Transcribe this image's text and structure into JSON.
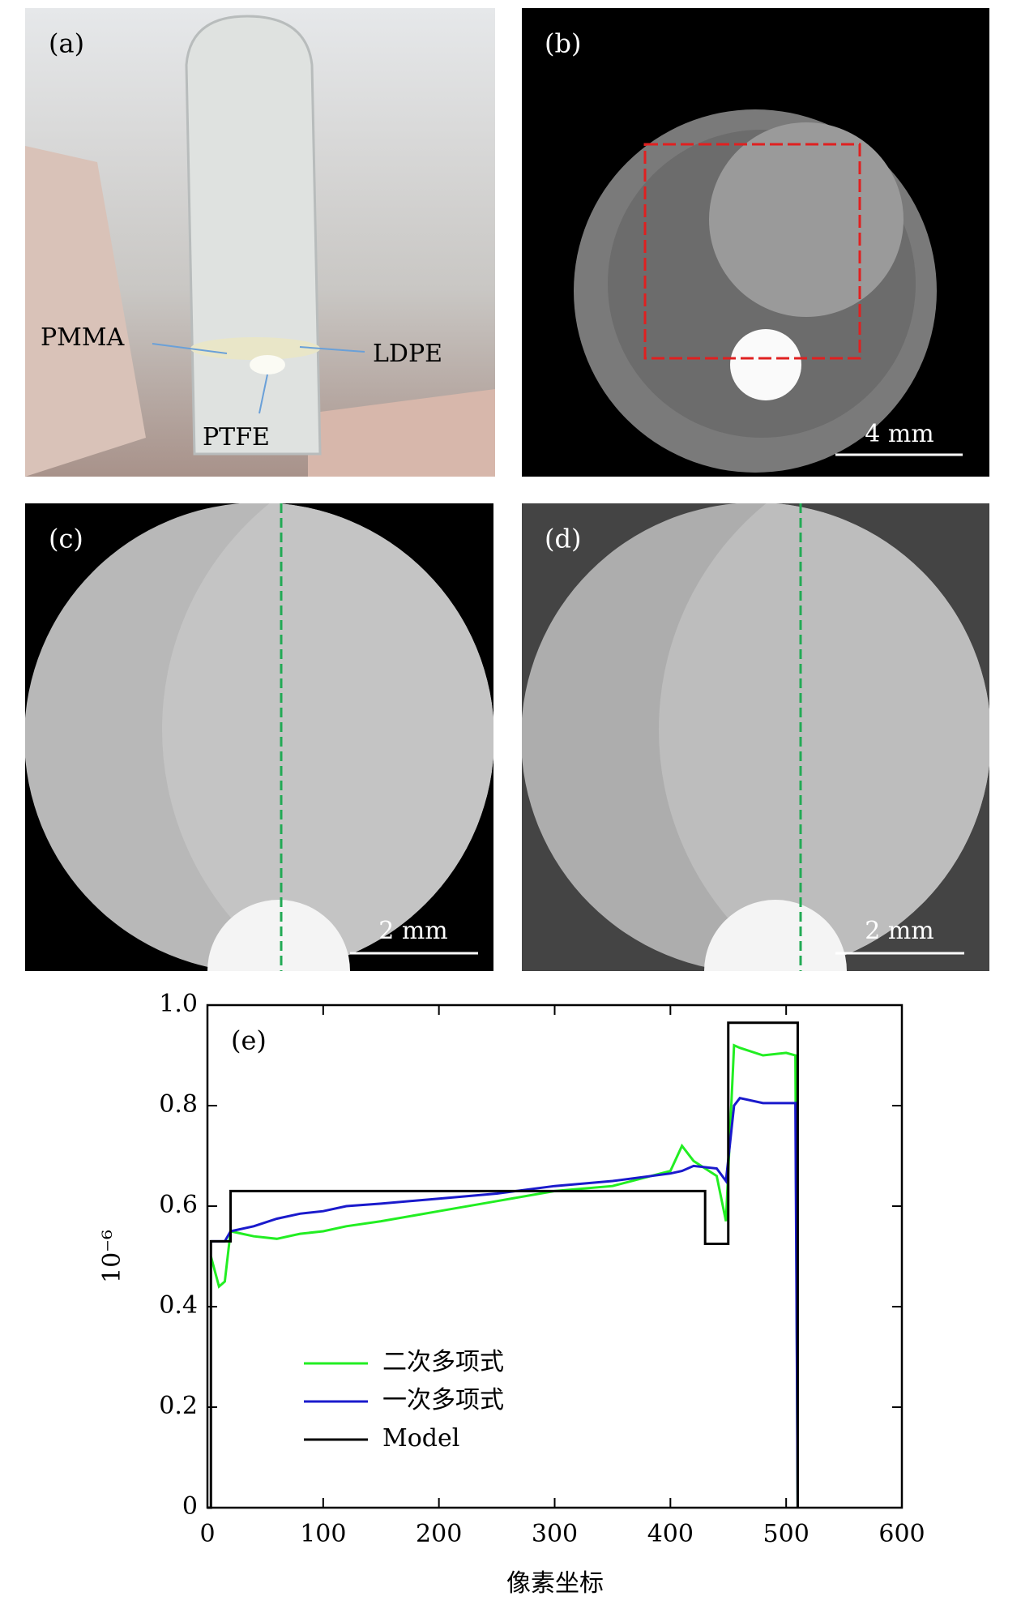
{
  "panels": {
    "a": {
      "label": "(a)",
      "annotations": [
        "PMMA",
        "LDPE",
        "PTFE"
      ]
    },
    "b": {
      "label": "(b)",
      "scale_bar": "4 mm"
    },
    "c": {
      "label": "(c)",
      "scale_bar": "2 mm"
    },
    "d": {
      "label": "(d)",
      "scale_bar": "2 mm"
    }
  },
  "chart_data": {
    "type": "line",
    "panel_label": "(e)",
    "x_label": "像素坐标",
    "y_label": "10⁻⁶",
    "xlim": [
      0,
      600
    ],
    "xticks": [
      0,
      100,
      200,
      300,
      400,
      500,
      600
    ],
    "ylim": [
      0,
      1
    ],
    "yticks": [
      0,
      0.2,
      0.4,
      0.6,
      0.8,
      {
        "value": 1,
        "label": "1.0"
      }
    ],
    "legend": "lower-left",
    "series": [
      {
        "name": "二次多项式",
        "color": "#22ee22",
        "x": [
          3,
          10,
          15,
          20,
          40,
          60,
          80,
          100,
          120,
          150,
          200,
          250,
          300,
          350,
          400,
          410,
          420,
          440,
          448,
          455,
          460,
          480,
          500,
          508,
          510
        ],
        "values": [
          0.5,
          0.44,
          0.45,
          0.55,
          0.54,
          0.535,
          0.545,
          0.55,
          0.56,
          0.57,
          0.59,
          0.61,
          0.63,
          0.64,
          0.67,
          0.72,
          0.69,
          0.66,
          0.57,
          0.92,
          0.915,
          0.9,
          0.905,
          0.9,
          0
        ]
      },
      {
        "name": "一次多项式",
        "color": "#1a1acc",
        "x": [
          3,
          10,
          15,
          20,
          40,
          60,
          80,
          100,
          120,
          150,
          200,
          250,
          300,
          350,
          400,
          410,
          420,
          440,
          448,
          455,
          460,
          480,
          500,
          508,
          510
        ],
        "values": [
          0.53,
          0.53,
          0.53,
          0.55,
          0.56,
          0.575,
          0.585,
          0.59,
          0.6,
          0.605,
          0.615,
          0.625,
          0.64,
          0.65,
          0.665,
          0.67,
          0.68,
          0.675,
          0.65,
          0.8,
          0.815,
          0.805,
          0.805,
          0.805,
          0
        ]
      },
      {
        "name": "Model",
        "color": "#000000",
        "x": [
          0,
          3,
          3,
          20,
          20,
          430,
          430,
          450,
          450,
          510,
          510
        ],
        "values": [
          0,
          0,
          0.53,
          0.53,
          0.63,
          0.63,
          0.525,
          0.525,
          0.965,
          0.965,
          0
        ]
      }
    ]
  }
}
